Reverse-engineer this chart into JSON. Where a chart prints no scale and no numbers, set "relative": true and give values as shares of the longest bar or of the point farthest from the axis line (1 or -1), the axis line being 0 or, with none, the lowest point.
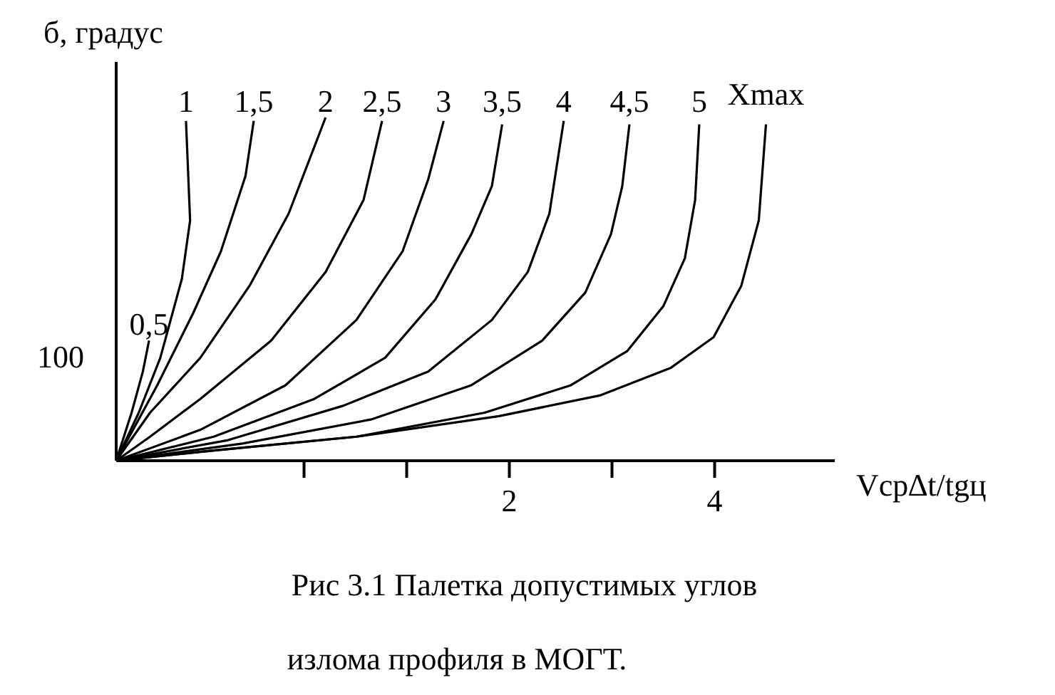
{
  "chart_data": {
    "type": "line",
    "relative": true,
    "xlabel": "Vср∆t/tgц",
    "ylabel": "б, градус",
    "annotations": [
      "100",
      "Рис 3.1  Палетка допустимых углов",
      "излома профиля в МОГТ."
    ],
    "xlim": [
      -1.83,
      5.17
    ],
    "xticks": [
      {
        "value": 0,
        "label": null
      },
      {
        "value": 1,
        "label": null
      },
      2,
      {
        "value": 3,
        "label": null
      },
      4
    ],
    "line_style": "solid",
    "series": [
      {
        "name": "0,5",
        "color": "#000000",
        "x": [
          -1.83,
          -1.68,
          -1.57,
          -1.51
        ],
        "values": [
          0,
          0.14,
          0.26,
          0.35
        ]
      },
      {
        "name": "1",
        "color": "#000000",
        "x": [
          -1.83,
          -1.61,
          -1.4,
          -1.19,
          -1.11,
          -1.15
        ],
        "values": [
          0,
          0.14,
          0.3,
          0.53,
          0.7,
          0.99
        ]
      },
      {
        "name": "1,5",
        "color": "#000000",
        "x": [
          -1.83,
          -1.43,
          -1.08,
          -0.81,
          -0.57,
          -0.49
        ],
        "values": [
          0,
          0.22,
          0.43,
          0.61,
          0.83,
          0.99
        ]
      },
      {
        "name": "2",
        "color": "#000000",
        "x": [
          -1.83,
          -1.5,
          -1.01,
          -0.53,
          -0.15,
          0.21
        ],
        "values": [
          0,
          0.14,
          0.3,
          0.51,
          0.72,
          1
        ]
      },
      {
        "name": "2,5",
        "color": "#000000",
        "x": [
          -1.83,
          -1.5,
          -1.01,
          -0.32,
          0.21,
          0.58,
          0.76
        ],
        "values": [
          0,
          0.07,
          0.18,
          0.35,
          0.55,
          0.76,
          0.99
        ]
      },
      {
        "name": "3",
        "color": "#000000",
        "x": [
          -1.83,
          -1.01,
          -0.18,
          0.51,
          0.96,
          1.21,
          1.36
        ],
        "values": [
          0,
          0.09,
          0.22,
          0.41,
          0.61,
          0.82,
          0.99
        ]
      },
      {
        "name": "3,5",
        "color": "#000000",
        "x": [
          -1.83,
          -0.88,
          0.1,
          0.79,
          1.28,
          1.63,
          1.83,
          1.93
        ],
        "values": [
          0,
          0.07,
          0.18,
          0.3,
          0.47,
          0.66,
          0.8,
          0.98
        ]
      },
      {
        "name": "4",
        "color": "#000000",
        "x": [
          -1.83,
          -0.74,
          0.38,
          1.21,
          1.83,
          2.18,
          2.39,
          2.53
        ],
        "values": [
          0,
          0.06,
          0.16,
          0.26,
          0.41,
          0.55,
          0.72,
          0.99
        ]
      },
      {
        "name": "4,5",
        "color": "#000000",
        "x": [
          -1.83,
          -0.6,
          0.65,
          1.63,
          2.32,
          2.74,
          2.99,
          3.1,
          3.17
        ],
        "values": [
          0,
          0.05,
          0.12,
          0.22,
          0.35,
          0.49,
          0.66,
          0.8,
          0.98
        ]
      },
      {
        "name": "5",
        "color": "#000000",
        "x": [
          -1.83,
          -0.88,
          0.51,
          1.76,
          2.6,
          3.15,
          3.5,
          3.71,
          3.81,
          3.85
        ],
        "values": [
          0,
          0.03,
          0.07,
          0.14,
          0.22,
          0.32,
          0.45,
          0.59,
          0.76,
          0.98
        ]
      },
      {
        "name": "Xmax",
        "color": "#000000",
        "x": [
          -1.83,
          -0.88,
          0.51,
          1.9,
          2.88,
          3.57,
          3.99,
          4.26,
          4.43,
          4.5
        ],
        "values": [
          0,
          0.03,
          0.07,
          0.13,
          0.19,
          0.27,
          0.36,
          0.51,
          0.7,
          0.98
        ]
      }
    ]
  }
}
